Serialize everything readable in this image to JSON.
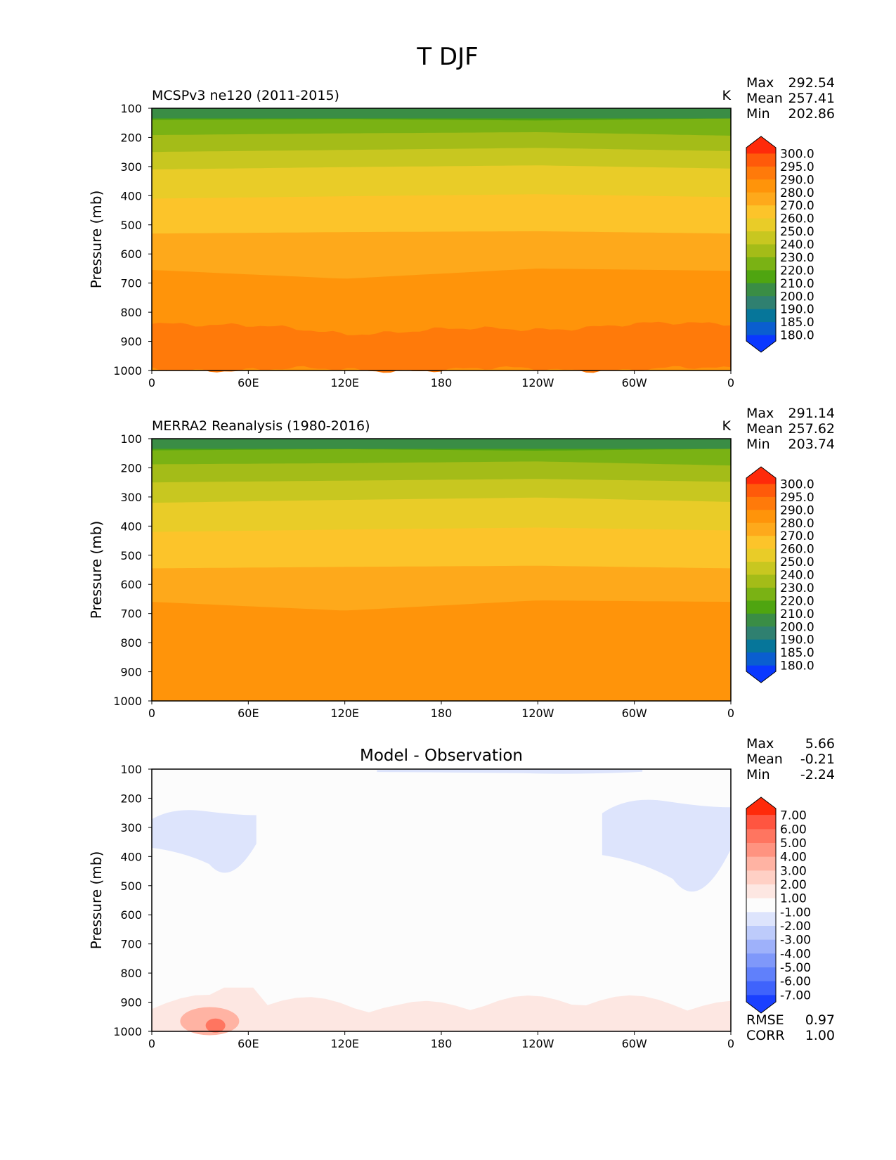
{
  "figure": {
    "title": "T DJF"
  },
  "axes": {
    "ylabel": "Pressure (mb)",
    "yticks": [
      "100",
      "200",
      "300",
      "400",
      "500",
      "600",
      "700",
      "800",
      "900",
      "1000"
    ],
    "xticks": [
      "0",
      "60E",
      "120E",
      "180",
      "120W",
      "60W",
      "0"
    ]
  },
  "colorbars": {
    "temperature": {
      "levels": [
        "300.0",
        "295.0",
        "290.0",
        "280.0",
        "270.0",
        "260.0",
        "250.0",
        "240.0",
        "230.0",
        "220.0",
        "210.0",
        "200.0",
        "190.0",
        "185.0",
        "180.0"
      ],
      "colors": [
        "#ff2a0a",
        "#ff5a0a",
        "#ff7a0a",
        "#ff940a",
        "#fea91b",
        "#fcc42a",
        "#e9cc28",
        "#c8c720",
        "#a4bc18",
        "#7ab214",
        "#4fa510",
        "#3a8d45",
        "#2f8070",
        "#06769a",
        "#0a5ed0",
        "#0a38ff"
      ]
    },
    "difference": {
      "levels": [
        "7.00",
        "6.00",
        "5.00",
        "4.00",
        "3.00",
        "2.00",
        "1.00",
        "-1.00",
        "-2.00",
        "-3.00",
        "-4.00",
        "-5.00",
        "-6.00",
        "-7.00"
      ],
      "colors": [
        "#ff2a0a",
        "#ff5540",
        "#ff7560",
        "#ff9380",
        "#ffb3a3",
        "#ffd0c5",
        "#fde7e2",
        "#fcfcfc",
        "#dde4fc",
        "#bdcbfb",
        "#9eb1fa",
        "#7f98fa",
        "#6080fb",
        "#3f63fc",
        "#1a40ff"
      ]
    }
  },
  "panels": [
    {
      "id": "model",
      "title_left": "MCSPv3 ne120 (2011-2015)",
      "title_center": "",
      "units": "K",
      "stats": [
        {
          "label": "Max",
          "value": "292.54"
        },
        {
          "label": "Mean",
          "value": "257.41"
        },
        {
          "label": "Min",
          "value": "202.86"
        }
      ]
    },
    {
      "id": "obs",
      "title_left": "MERRA2 Reanalysis (1980-2016)",
      "title_center": "",
      "units": "K",
      "stats": [
        {
          "label": "Max",
          "value": "291.14"
        },
        {
          "label": "Mean",
          "value": "257.62"
        },
        {
          "label": "Min",
          "value": "203.74"
        }
      ]
    },
    {
      "id": "diff",
      "title_left": "",
      "title_center": "Model - Observation",
      "units": "",
      "stats": [
        {
          "label": "Max",
          "value": "5.66"
        },
        {
          "label": "Mean",
          "value": "-0.21"
        },
        {
          "label": "Min",
          "value": "-2.24"
        }
      ],
      "extra": [
        {
          "label": "RMSE",
          "value": "0.97"
        },
        {
          "label": "CORR",
          "value": "1.00"
        }
      ]
    }
  ],
  "chart_data": [
    {
      "type": "heatmap",
      "title": "MCSPv3 ne120 (2011-2015)",
      "units": "K",
      "xlabel": "",
      "ylabel": "Pressure (mb)",
      "x_range": [
        "0",
        "0"
      ],
      "y_range": [
        100,
        1000
      ],
      "layers": [
        {
          "level_K": 220,
          "pressure_mb": [
            140,
            137,
            142,
            135
          ]
        },
        {
          "level_K": 230,
          "pressure_mb": [
            192,
            186,
            182,
            194
          ]
        },
        {
          "level_K": 240,
          "pressure_mb": [
            250,
            243,
            236,
            247
          ]
        },
        {
          "level_K": 250,
          "pressure_mb": [
            310,
            302,
            296,
            307
          ]
        },
        {
          "level_K": 260,
          "pressure_mb": [
            410,
            402,
            395,
            405
          ]
        },
        {
          "level_K": 270,
          "pressure_mb": [
            530,
            525,
            522,
            530
          ]
        },
        {
          "level_K": 280,
          "pressure_mb": [
            655,
            685,
            650,
            658
          ]
        },
        {
          "level_K": 290,
          "pressure_mb": [
            830,
            870,
            855,
            835
          ]
        },
        {
          "level_K": 295,
          "pressure_mb": [
            995,
            998,
            996,
            995
          ]
        }
      ]
    },
    {
      "type": "heatmap",
      "title": "MERRA2 Reanalysis (1980-2016)",
      "units": "K",
      "xlabel": "",
      "ylabel": "Pressure (mb)",
      "x_range": [
        "0",
        "0"
      ],
      "y_range": [
        100,
        1000
      ],
      "layers": [
        {
          "level_K": 220,
          "pressure_mb": [
            140,
            136,
            141,
            135
          ]
        },
        {
          "level_K": 230,
          "pressure_mb": [
            188,
            184,
            178,
            192
          ]
        },
        {
          "level_K": 240,
          "pressure_mb": [
            250,
            244,
            238,
            248
          ]
        },
        {
          "level_K": 250,
          "pressure_mb": [
            320,
            310,
            302,
            317
          ]
        },
        {
          "level_K": 260,
          "pressure_mb": [
            420,
            412,
            405,
            415
          ]
        },
        {
          "level_K": 270,
          "pressure_mb": [
            545,
            540,
            536,
            545
          ]
        },
        {
          "level_K": 280,
          "pressure_mb": [
            660,
            690,
            655,
            660
          ]
        },
        {
          "level_K": 290,
          "pressure_mb": [
            830,
            870,
            855,
            835
          ]
        }
      ]
    },
    {
      "type": "heatmap",
      "title": "Model - Observation",
      "units": "K",
      "xlabel": "",
      "ylabel": "Pressure (mb)",
      "x_range": [
        "0",
        "0"
      ],
      "y_range": [
        100,
        1000
      ],
      "regions": [
        {
          "sign": "negative",
          "magnitude": "1-2",
          "lon_range": [
            "0",
            "65E"
          ],
          "pressure_range": [
            230,
            510
          ]
        },
        {
          "sign": "negative",
          "magnitude": "1-2",
          "lon_range": [
            "80W",
            "0"
          ],
          "pressure_range": [
            190,
            600
          ]
        },
        {
          "sign": "negative",
          "magnitude": "1-2",
          "lon_range": [
            "140E",
            "55W"
          ],
          "pressure_range": [
            100,
            120
          ]
        },
        {
          "sign": "positive",
          "magnitude": "1-5",
          "lon_range": [
            "0",
            "0"
          ],
          "pressure_range": [
            880,
            1000
          ]
        }
      ]
    }
  ]
}
